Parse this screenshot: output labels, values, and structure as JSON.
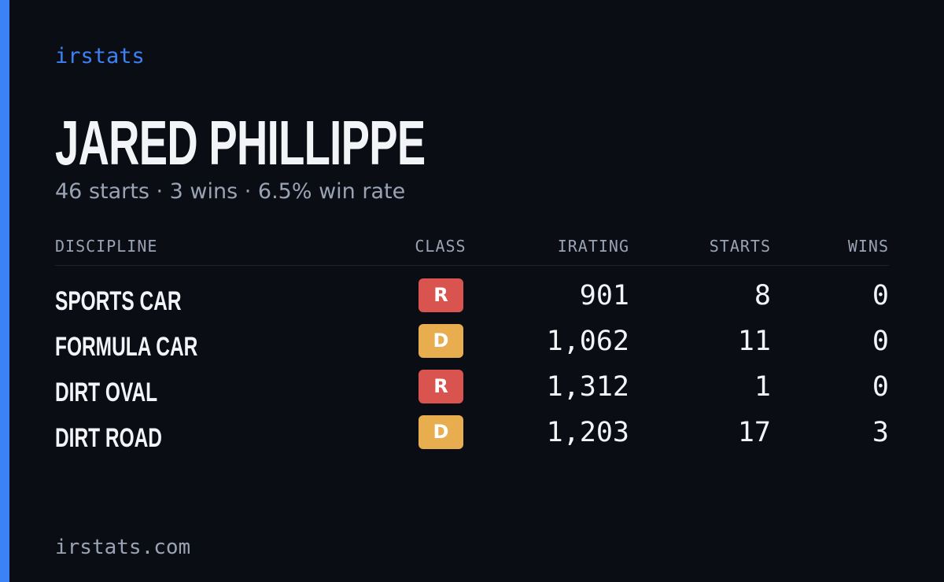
{
  "brand": "irstats",
  "driver": {
    "name": "JARED PHILLIPPE",
    "summary": "46 starts · 3 wins · 6.5% win rate"
  },
  "table": {
    "headers": [
      "DISCIPLINE",
      "CLASS",
      "IRATING",
      "STARTS",
      "WINS"
    ],
    "rows": [
      {
        "discipline": "SPORTS CAR",
        "class": "R",
        "class_color": "#d9534f",
        "irating": "901",
        "starts": "8",
        "wins": "0"
      },
      {
        "discipline": "FORMULA CAR",
        "class": "D",
        "class_color": "#e8ad4f",
        "irating": "1,062",
        "starts": "11",
        "wins": "0"
      },
      {
        "discipline": "DIRT OVAL",
        "class": "R",
        "class_color": "#d9534f",
        "irating": "1,312",
        "starts": "1",
        "wins": "0"
      },
      {
        "discipline": "DIRT ROAD",
        "class": "D",
        "class_color": "#e8ad4f",
        "irating": "1,203",
        "starts": "17",
        "wins": "3"
      }
    ]
  },
  "footer": "irstats.com"
}
